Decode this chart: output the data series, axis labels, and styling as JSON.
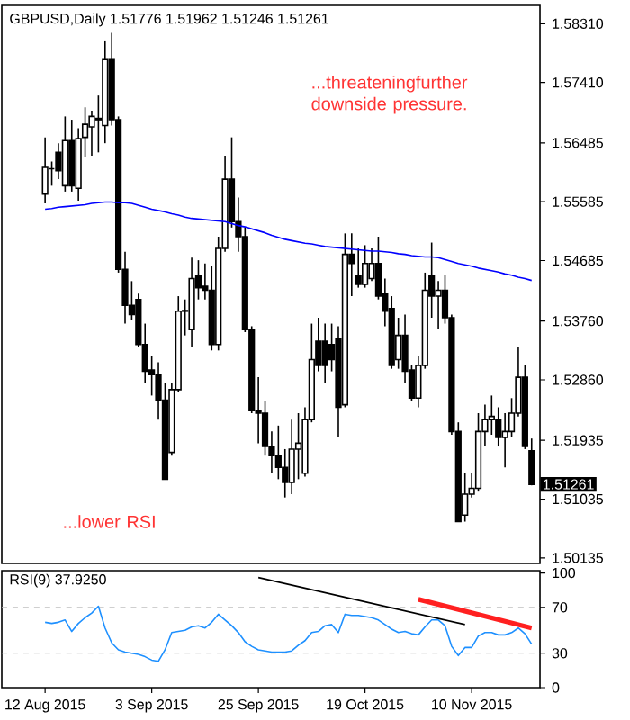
{
  "chart_data": [
    {
      "type": "candlestick",
      "title": "GBPUSD,Daily 1.51776 1.51962 1.51246 1.51261",
      "annotations": [
        "...threateningfurther downside pressure.",
        "...lower RSI",
        "1.51261"
      ],
      "categories": [
        null,
        null,
        null,
        null,
        null,
        null,
        null,
        null,
        null,
        null,
        null,
        null,
        null,
        null,
        null,
        null,
        null,
        null,
        null,
        null,
        null,
        null,
        null,
        null,
        null,
        null,
        null,
        null,
        null,
        null,
        null,
        null,
        null,
        null,
        null,
        null,
        null,
        null,
        null,
        null,
        null,
        null,
        null,
        null,
        null,
        null,
        null,
        null,
        null,
        null,
        null,
        null,
        null,
        null,
        null,
        null,
        null,
        null,
        null,
        null,
        null,
        null,
        null,
        null,
        null,
        null,
        null,
        null,
        null,
        null,
        null,
        null,
        null,
        null
      ],
      "ohlc": [
        [
          1.557,
          1.5657,
          1.5556,
          1.5611
        ],
        [
          1.5609,
          1.562,
          1.5583,
          1.5609
        ],
        [
          1.5634,
          1.5648,
          1.5593,
          1.5606
        ],
        [
          1.5583,
          1.5689,
          1.5574,
          1.5652
        ],
        [
          1.5652,
          1.5684,
          1.5574,
          1.5583
        ],
        [
          1.5579,
          1.5671,
          1.556,
          1.5655
        ],
        [
          1.5657,
          1.5703,
          1.5627,
          1.5677
        ],
        [
          1.5673,
          1.5698,
          1.5629,
          1.5689
        ],
        [
          1.5686,
          1.5721,
          1.5634,
          1.5684
        ],
        [
          1.5675,
          1.5804,
          1.5648,
          1.5776
        ],
        [
          1.5776,
          1.5817,
          1.5675,
          1.5684
        ],
        [
          1.5684,
          1.5689,
          1.545,
          1.5455
        ],
        [
          1.5455,
          1.5482,
          1.5372,
          1.54
        ],
        [
          1.54,
          1.5437,
          1.5377,
          1.5386
        ],
        [
          1.5409,
          1.5418,
          1.5336,
          1.534
        ],
        [
          1.534,
          1.5372,
          1.5281,
          1.5299
        ],
        [
          1.5301,
          1.5322,
          1.5262,
          1.5294
        ],
        [
          1.5294,
          1.5313,
          1.5225,
          1.5255
        ],
        [
          1.5255,
          1.5281,
          1.5134,
          1.5134
        ],
        [
          1.5175,
          1.5281,
          1.517,
          1.5271
        ],
        [
          1.5271,
          1.5414,
          1.5267,
          1.5391
        ],
        [
          1.5391,
          1.5409,
          1.5354,
          1.5392
        ],
        [
          1.5363,
          1.5473,
          1.5336,
          1.5441
        ],
        [
          1.5446,
          1.5469,
          1.5409,
          1.5427
        ],
        [
          1.5429,
          1.5464,
          1.5409,
          1.5423
        ],
        [
          1.5423,
          1.546,
          1.5331,
          1.534
        ],
        [
          1.534,
          1.5505,
          1.5331,
          1.5487
        ],
        [
          1.5487,
          1.5629,
          1.5482,
          1.5593
        ],
        [
          1.5593,
          1.5657,
          1.5519,
          1.5528
        ],
        [
          1.5528,
          1.5565,
          1.5482,
          1.5505
        ],
        [
          1.5505,
          1.5519,
          1.5359,
          1.5363
        ],
        [
          1.5363,
          1.5368,
          1.5235,
          1.5239
        ],
        [
          1.5239,
          1.529,
          1.5189,
          1.5235
        ],
        [
          1.5235,
          1.5253,
          1.517,
          1.5184
        ],
        [
          1.5184,
          1.5207,
          1.5143,
          1.517
        ],
        [
          1.517,
          1.5216,
          1.5134,
          1.5152
        ],
        [
          1.5152,
          1.518,
          1.5106,
          1.5129
        ],
        [
          1.5129,
          1.5225,
          1.5111,
          1.518
        ],
        [
          1.518,
          1.5235,
          1.5134,
          1.5189
        ],
        [
          1.5143,
          1.5244,
          1.5138,
          1.5225
        ],
        [
          1.5225,
          1.5372,
          1.5221,
          1.5317
        ],
        [
          1.5345,
          1.5381,
          1.5299,
          1.5308
        ],
        [
          1.5345,
          1.5372,
          1.5281,
          1.5308
        ],
        [
          1.534,
          1.5372,
          1.5299,
          1.5317
        ],
        [
          1.5349,
          1.5368,
          1.5198,
          1.5244
        ],
        [
          1.5248,
          1.551,
          1.5244,
          1.5478
        ],
        [
          1.5478,
          1.551,
          1.5414,
          1.5464
        ],
        [
          1.5446,
          1.5487,
          1.5427,
          1.5432
        ],
        [
          1.5432,
          1.5492,
          1.5427,
          1.5464
        ],
        [
          1.5441,
          1.5487,
          1.5437,
          1.5464
        ],
        [
          1.5464,
          1.5505,
          1.5409,
          1.5414
        ],
        [
          1.5418,
          1.5441,
          1.5368,
          1.5391
        ],
        [
          1.5395,
          1.5414,
          1.5303,
          1.5308
        ],
        [
          1.5317,
          1.5381,
          1.5303,
          1.5354
        ],
        [
          1.5354,
          1.5386,
          1.5281,
          1.5299
        ],
        [
          1.5301,
          1.5308,
          1.5253,
          1.5258
        ],
        [
          1.5258,
          1.5322,
          1.5244,
          1.5308
        ],
        [
          1.5308,
          1.545,
          1.5303,
          1.5423
        ],
        [
          1.5446,
          1.5496,
          1.5381,
          1.5414
        ],
        [
          1.5414,
          1.5437,
          1.5363,
          1.5423
        ],
        [
          1.5423,
          1.5446,
          1.5372,
          1.5381
        ],
        [
          1.5381,
          1.5386,
          1.5202,
          1.5207
        ],
        [
          1.5207,
          1.5221,
          1.5069,
          1.5069
        ],
        [
          1.5079,
          1.5143,
          1.5069,
          1.5111
        ],
        [
          1.5111,
          1.5143,
          1.5106,
          1.512
        ],
        [
          1.512,
          1.5235,
          1.5115,
          1.5207
        ],
        [
          1.5207,
          1.5248,
          1.5184,
          1.5225
        ],
        [
          1.5225,
          1.5262,
          1.5202,
          1.523
        ],
        [
          1.5225,
          1.5244,
          1.5184,
          1.5198
        ],
        [
          1.5198,
          1.5235,
          1.5152,
          1.5207
        ],
        [
          1.5207,
          1.5258,
          1.5198,
          1.5235
        ],
        [
          1.5235,
          1.5336,
          1.523,
          1.529
        ],
        [
          1.529,
          1.5308,
          1.518,
          1.5184
        ],
        [
          1.51776,
          1.51962,
          1.51246,
          1.51261
        ]
      ],
      "series": [
        {
          "type": "line",
          "color": "#0000ff",
          "values": [
            1.5547,
            1.5548,
            1.555,
            1.5551,
            1.5552,
            1.5553,
            1.5554,
            1.5556,
            1.5557,
            1.5558,
            1.5558,
            1.5557,
            1.5557,
            1.5556,
            1.5553,
            1.555,
            1.5547,
            1.5545,
            1.5543,
            1.554,
            1.5538,
            1.5535,
            1.5533,
            1.5532,
            1.5531,
            1.553,
            1.5529,
            1.5528,
            1.5525,
            1.5522,
            1.552,
            1.5517,
            1.5514,
            1.5511,
            1.5507,
            1.5504,
            1.5501,
            1.5499,
            1.5497,
            1.5495,
            1.5494,
            1.5492,
            1.549,
            1.5489,
            1.5488,
            1.5487,
            1.5486,
            1.5485,
            1.5484,
            1.5483,
            1.5483,
            1.5482,
            1.5481,
            1.5479,
            1.5478,
            1.5476,
            1.5475,
            1.5474,
            1.5474,
            1.5473,
            1.547,
            1.5467,
            1.5464,
            1.5462,
            1.546,
            1.5457,
            1.5455,
            1.5453,
            1.5451,
            1.5448,
            1.5446,
            1.5443,
            1.5441,
            1.5438
          ]
        }
      ],
      "ylim": [
        1.5005,
        1.5859
      ],
      "yticks": [
        {
          "value": 1.5831,
          "label": "1.58310"
        },
        {
          "value": 1.5741,
          "label": "1.57410"
        },
        {
          "value": 1.56485,
          "label": "1.56485"
        },
        {
          "value": 1.55585,
          "label": "1.55585"
        },
        {
          "value": 1.54685,
          "label": "1.54685"
        },
        {
          "value": 1.5376,
          "label": "1.53760"
        },
        {
          "value": 1.5286,
          "label": "1.52860"
        },
        {
          "value": 1.51935,
          "label": "1.51935"
        },
        {
          "value": 1.51035,
          "label": "1.51035"
        },
        {
          "value": 1.50135,
          "label": "1.50135"
        }
      ],
      "tick_labels": "y"
    },
    {
      "type": "line",
      "title": "RSI(9) 37.9250",
      "categories": [
        "12 Aug 2015",
        null,
        null,
        null,
        null,
        null,
        null,
        null,
        null,
        null,
        null,
        null,
        null,
        null,
        null,
        null,
        "3 Sep 2015",
        null,
        null,
        null,
        null,
        null,
        null,
        null,
        null,
        null,
        null,
        null,
        null,
        null,
        null,
        null,
        "25 Sep 2015",
        null,
        null,
        null,
        null,
        null,
        null,
        null,
        null,
        null,
        null,
        null,
        null,
        null,
        null,
        null,
        "19 Oct 2015",
        null,
        null,
        null,
        null,
        null,
        null,
        null,
        null,
        null,
        null,
        null,
        null,
        null,
        null,
        null,
        "10 Nov 2015",
        null,
        null,
        null,
        null,
        null,
        null,
        null,
        null,
        null
      ],
      "series": [
        {
          "color": "#1e90ff",
          "values": [
            57,
            56,
            57,
            59,
            49,
            56,
            61,
            65,
            71,
            52,
            39,
            33,
            31,
            30,
            29,
            27,
            24,
            23,
            33,
            48,
            49,
            50,
            53,
            54,
            52,
            57,
            64,
            59,
            54,
            48,
            40,
            36,
            33,
            32,
            31,
            31,
            31,
            32,
            37,
            41,
            48,
            49,
            54,
            55,
            48,
            64,
            63,
            63,
            62,
            61,
            59,
            55,
            51,
            48,
            49,
            47,
            46,
            53,
            59,
            59,
            54,
            36,
            28,
            35,
            35,
            45,
            48,
            48,
            46,
            46,
            48,
            52,
            47,
            38
          ]
        },
        {
          "color": "#000000",
          "values": [
            null,
            null,
            null,
            null,
            null,
            null,
            null,
            null,
            null,
            null,
            null,
            null,
            null,
            null,
            null,
            null,
            null,
            null,
            null,
            null,
            null,
            null,
            null,
            null,
            null,
            null,
            null,
            null,
            null,
            null,
            null,
            null,
            96,
            null,
            null,
            null,
            null,
            null,
            null,
            null,
            null,
            null,
            null,
            null,
            null,
            null,
            null,
            null,
            null,
            null,
            null,
            null,
            null,
            null,
            null,
            null,
            null,
            null,
            null,
            null,
            null,
            null,
            null,
            55,
            null,
            null,
            null,
            null,
            null,
            null,
            null,
            null,
            null,
            null
          ]
        },
        {
          "color": "#ff2020",
          "values": [
            null,
            null,
            null,
            null,
            null,
            null,
            null,
            null,
            null,
            null,
            null,
            null,
            null,
            null,
            null,
            null,
            null,
            null,
            null,
            null,
            null,
            null,
            null,
            null,
            null,
            null,
            null,
            null,
            null,
            null,
            null,
            null,
            null,
            null,
            null,
            null,
            null,
            null,
            null,
            null,
            null,
            null,
            null,
            null,
            null,
            null,
            null,
            null,
            null,
            null,
            null,
            null,
            null,
            null,
            null,
            null,
            77,
            null,
            null,
            null,
            null,
            null,
            null,
            null,
            null,
            null,
            null,
            null,
            null,
            null,
            null,
            null,
            null,
            52
          ]
        }
      ],
      "ref_lines": [
        {
          "axis": "y",
          "value": 70,
          "color": "#c0c0c0",
          "line_style": "dashed"
        },
        {
          "axis": "y",
          "value": 30,
          "color": "#c0c0c0",
          "line_style": "dashed"
        }
      ],
      "ylim": [
        0,
        102
      ],
      "yticks": [
        0,
        30,
        70,
        100
      ]
    }
  ]
}
